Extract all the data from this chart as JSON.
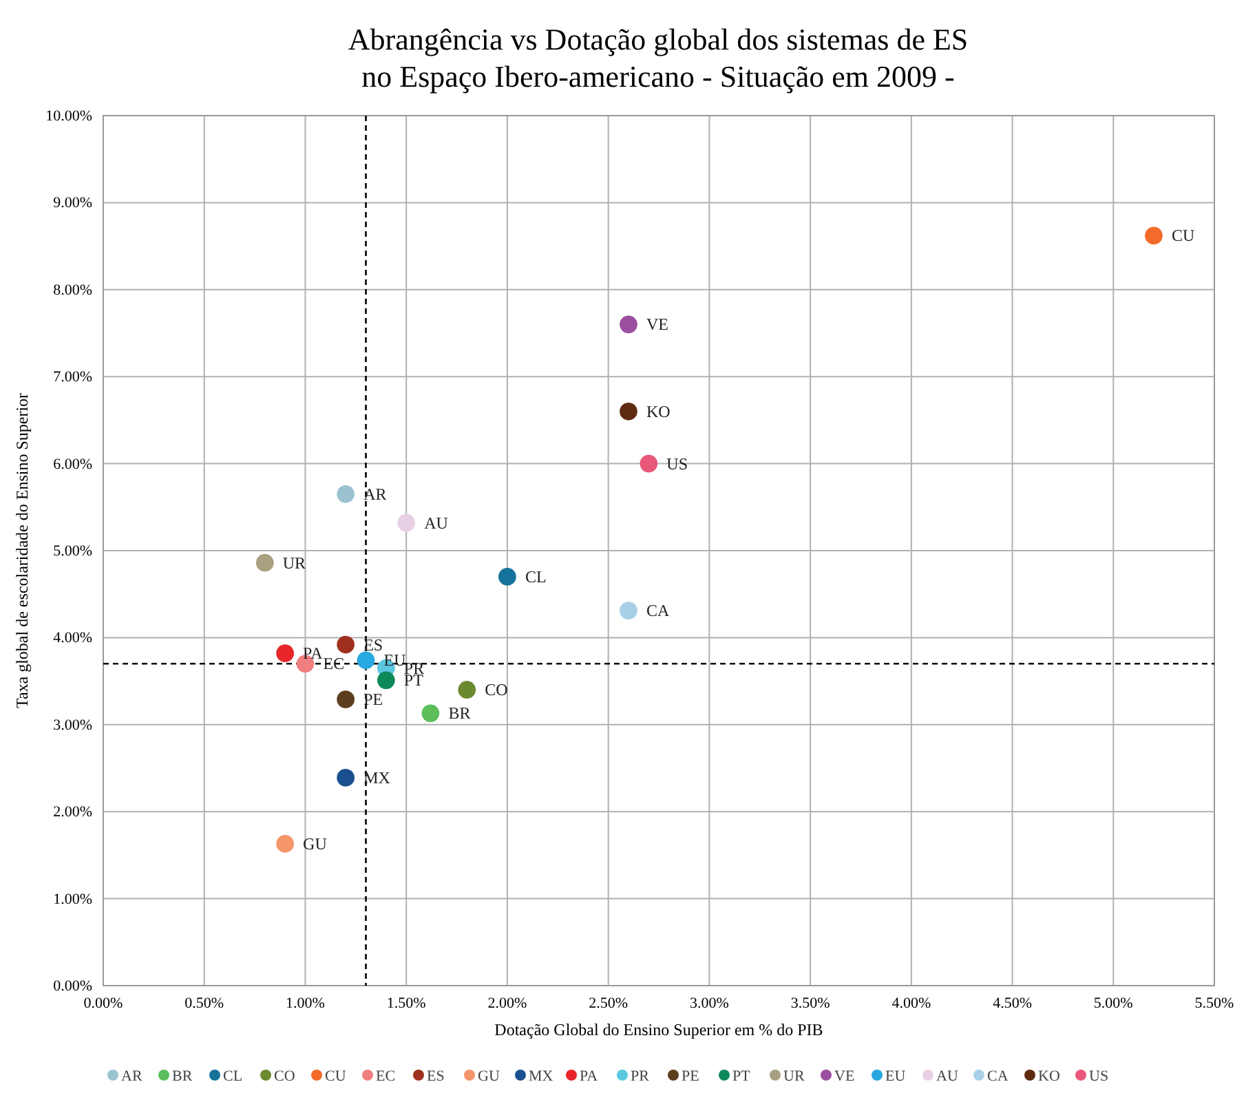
{
  "chart_data": {
    "type": "scatter",
    "title": "Abrangência vs Dotação global dos sistemas de ES\nno Espaço Ibero-americano - Situação em 2009 -",
    "xlabel": "Dotação Global do Ensino Superior em % do PIB",
    "ylabel": "Taxa global de escolaridade do Ensino Superior",
    "xlim": [
      0,
      5.5
    ],
    "ylim": [
      0,
      10
    ],
    "xticks": [
      {
        "value": 0,
        "label": "0.00%"
      },
      {
        "value": 0.5,
        "label": "0.50%"
      },
      {
        "value": 1,
        "label": "1.00%"
      },
      {
        "value": 1.5,
        "label": "1.50%"
      },
      {
        "value": 2,
        "label": "2.00%"
      },
      {
        "value": 2.5,
        "label": "2.50%"
      },
      {
        "value": 3,
        "label": "3.00%"
      },
      {
        "value": 3.5,
        "label": "3.50%"
      },
      {
        "value": 4,
        "label": "4.00%"
      },
      {
        "value": 4.5,
        "label": "4.50%"
      },
      {
        "value": 5,
        "label": "5.00%"
      },
      {
        "value": 5.5,
        "label": "5.50%"
      }
    ],
    "yticks": [
      {
        "value": 0,
        "label": "0.00%"
      },
      {
        "value": 1,
        "label": "1.00%"
      },
      {
        "value": 2,
        "label": "2.00%"
      },
      {
        "value": 3,
        "label": "3.00%"
      },
      {
        "value": 4,
        "label": "4.00%"
      },
      {
        "value": 5,
        "label": "5.00%"
      },
      {
        "value": 6,
        "label": "6.00%"
      },
      {
        "value": 7,
        "label": "7.00%"
      },
      {
        "value": 8,
        "label": "8.00%"
      },
      {
        "value": 9,
        "label": "9.00%"
      },
      {
        "value": 10,
        "label": "10.00%"
      }
    ],
    "grid": true,
    "legend": "bottom",
    "marker": "circle",
    "ref_lines": [
      {
        "axis": "x",
        "value": 1.3,
        "color": "#000000",
        "line_style": "dashed"
      },
      {
        "axis": "y",
        "value": 3.7,
        "color": "#000000",
        "line_style": "dashed"
      }
    ],
    "series": [
      {
        "name": "AR",
        "color": "#9bc3cf",
        "x": [
          1.2
        ],
        "values": [
          5.65
        ]
      },
      {
        "name": "BR",
        "color": "#5cbf5c",
        "x": [
          1.62
        ],
        "values": [
          3.13
        ]
      },
      {
        "name": "CL",
        "color": "#15729b",
        "x": [
          2.0
        ],
        "values": [
          4.7
        ]
      },
      {
        "name": "CO",
        "color": "#6b8a2e",
        "x": [
          1.8
        ],
        "values": [
          3.4
        ]
      },
      {
        "name": "CU",
        "color": "#f26b2a",
        "x": [
          5.2
        ],
        "values": [
          8.62
        ]
      },
      {
        "name": "EC",
        "color": "#f08080",
        "x": [
          1.0
        ],
        "values": [
          3.7
        ]
      },
      {
        "name": "ES",
        "color": "#a0301e",
        "x": [
          1.2
        ],
        "values": [
          3.92
        ]
      },
      {
        "name": "GU",
        "color": "#f4956a",
        "x": [
          0.9
        ],
        "values": [
          1.63
        ]
      },
      {
        "name": "MX",
        "color": "#1a4f8f",
        "x": [
          1.2
        ],
        "values": [
          2.39
        ]
      },
      {
        "name": "PA",
        "color": "#e8262a",
        "x": [
          0.9
        ],
        "values": [
          3.82
        ]
      },
      {
        "name": "PR",
        "color": "#5bc8e0",
        "x": [
          1.4
        ],
        "values": [
          3.65
        ]
      },
      {
        "name": "PE",
        "color": "#5c3d1e",
        "x": [
          1.2
        ],
        "values": [
          3.29
        ]
      },
      {
        "name": "PT",
        "color": "#0e8a5a",
        "x": [
          1.4
        ],
        "values": [
          3.51
        ]
      },
      {
        "name": "UR",
        "color": "#a8a080",
        "x": [
          0.8
        ],
        "values": [
          4.86
        ]
      },
      {
        "name": "VE",
        "color": "#9a4fa0",
        "x": [
          2.6
        ],
        "values": [
          7.6
        ]
      },
      {
        "name": "EU",
        "color": "#27a8e0",
        "x": [
          1.3
        ],
        "values": [
          3.74
        ]
      },
      {
        "name": "AU",
        "color": "#e8d0e4",
        "x": [
          1.5
        ],
        "values": [
          5.32
        ]
      },
      {
        "name": "CA",
        "color": "#a8d0e8",
        "x": [
          2.6
        ],
        "values": [
          4.31
        ]
      },
      {
        "name": "KO",
        "color": "#5e2a10",
        "x": [
          2.6
        ],
        "values": [
          6.6
        ]
      },
      {
        "name": "US",
        "color": "#e8587a",
        "x": [
          2.7
        ],
        "values": [
          6.0
        ]
      }
    ]
  }
}
